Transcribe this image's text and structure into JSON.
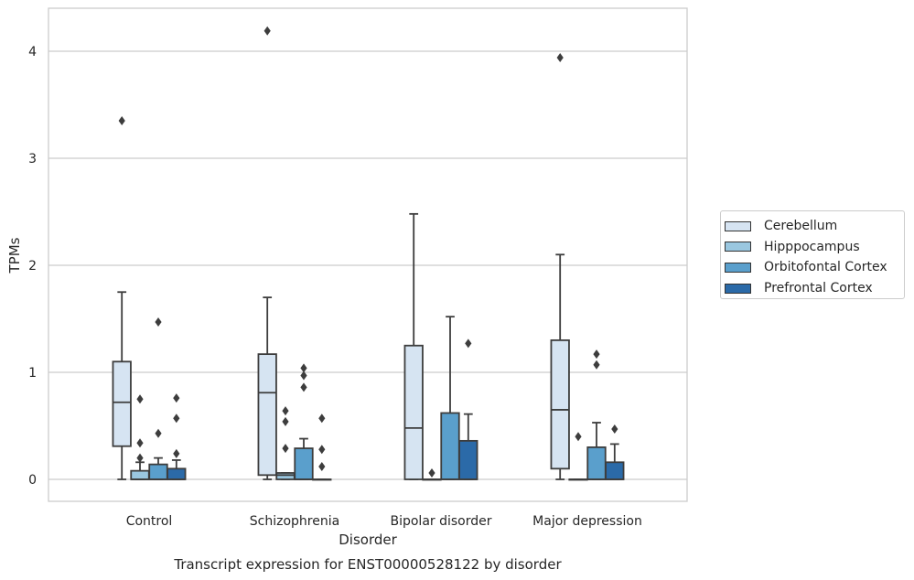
{
  "chart_data": {
    "type": "box",
    "caption": "Transcript expression for ENST00000528122 by disorder",
    "xlabel": "Disorder",
    "ylabel": "TPMs",
    "ylim": [
      -0.2,
      4.4
    ],
    "yticks": [
      0,
      1,
      2,
      3,
      4
    ],
    "grid": "horizontal",
    "legend_position": "right",
    "categories": [
      "Control",
      "Schizophrenia",
      "Bipolar disorder",
      "Major depression"
    ],
    "series": [
      {
        "name": "Cerebellum",
        "color": "#d6e4f2",
        "boxes": [
          {
            "whislo": 0.0,
            "q1": 0.31,
            "med": 0.72,
            "q3": 1.1,
            "whishi": 1.75,
            "fliers": [
              3.35
            ]
          },
          {
            "whislo": 0.0,
            "q1": 0.04,
            "med": 0.81,
            "q3": 1.17,
            "whishi": 1.7,
            "fliers": [
              4.19
            ]
          },
          {
            "whislo": 0.0,
            "q1": 0.0,
            "med": 0.48,
            "q3": 1.25,
            "whishi": 2.48,
            "fliers": []
          },
          {
            "whislo": 0.0,
            "q1": 0.1,
            "med": 0.65,
            "q3": 1.3,
            "whishi": 2.1,
            "fliers": [
              3.94
            ]
          }
        ]
      },
      {
        "name": "Hipppocampus",
        "color": "#9ac7e0",
        "boxes": [
          {
            "whislo": 0.0,
            "q1": 0.0,
            "med": 0.0,
            "q3": 0.08,
            "whishi": 0.16,
            "fliers": [
              0.2,
              0.34,
              0.75
            ]
          },
          {
            "whislo": 0.0,
            "q1": 0.0,
            "med": 0.04,
            "q3": 0.06,
            "whishi": 0.06,
            "fliers": [
              0.29,
              0.54,
              0.64
            ]
          },
          {
            "whislo": 0.0,
            "q1": 0.0,
            "med": 0.0,
            "q3": 0.0,
            "whishi": 0.0,
            "fliers": [
              0.06
            ]
          },
          {
            "whislo": 0.0,
            "q1": 0.0,
            "med": 0.0,
            "q3": 0.0,
            "whishi": 0.0,
            "fliers": [
              0.4
            ]
          }
        ]
      },
      {
        "name": "Orbitofontal Cortex",
        "color": "#5a9fcc",
        "boxes": [
          {
            "whislo": 0.0,
            "q1": 0.0,
            "med": 0.0,
            "q3": 0.14,
            "whishi": 0.2,
            "fliers": [
              0.43,
              1.47
            ]
          },
          {
            "whislo": 0.0,
            "q1": 0.0,
            "med": 0.0,
            "q3": 0.29,
            "whishi": 0.38,
            "fliers": [
              0.86,
              0.97,
              1.04
            ]
          },
          {
            "whislo": 0.0,
            "q1": 0.0,
            "med": 0.0,
            "q3": 0.62,
            "whishi": 1.52,
            "fliers": []
          },
          {
            "whislo": 0.0,
            "q1": 0.0,
            "med": 0.0,
            "q3": 0.3,
            "whishi": 0.53,
            "fliers": [
              1.07,
              1.17
            ]
          }
        ]
      },
      {
        "name": "Prefrontal Cortex",
        "color": "#2b6aa8",
        "boxes": [
          {
            "whislo": 0.0,
            "q1": 0.0,
            "med": 0.0,
            "q3": 0.1,
            "whishi": 0.18,
            "fliers": [
              0.24,
              0.57,
              0.76
            ]
          },
          {
            "whislo": 0.0,
            "q1": 0.0,
            "med": 0.0,
            "q3": 0.0,
            "whishi": 0.0,
            "fliers": [
              0.12,
              0.28,
              0.57
            ]
          },
          {
            "whislo": 0.0,
            "q1": 0.0,
            "med": 0.0,
            "q3": 0.36,
            "whishi": 0.61,
            "fliers": [
              1.27
            ]
          },
          {
            "whislo": 0.0,
            "q1": 0.0,
            "med": 0.0,
            "q3": 0.16,
            "whishi": 0.33,
            "fliers": [
              0.47
            ]
          }
        ]
      }
    ]
  }
}
